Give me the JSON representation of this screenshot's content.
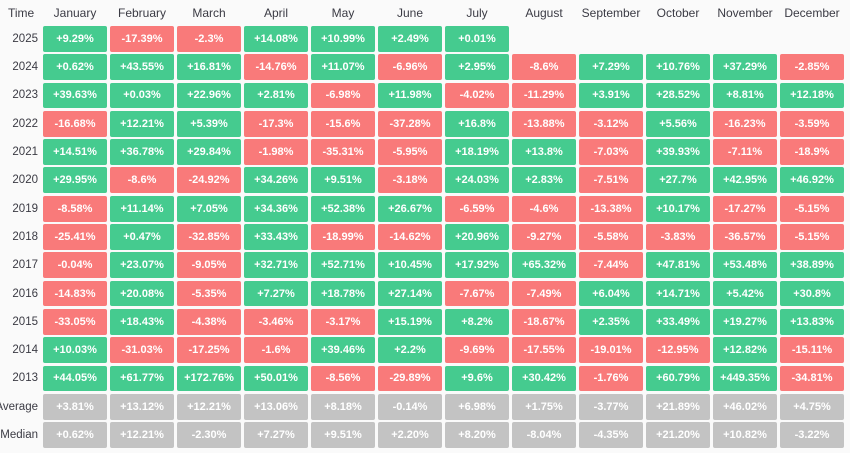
{
  "header": {
    "time_label": "Time"
  },
  "colors": {
    "positive": "#45cb8f",
    "negative": "#f97a7a",
    "summary": "#c3c3c3",
    "cell_text": "#ffffff",
    "header_text": "#3b3b44",
    "background": "#fafafa"
  },
  "chart_data": {
    "type": "heatmap",
    "columns": [
      "January",
      "February",
      "March",
      "April",
      "May",
      "June",
      "July",
      "August",
      "September",
      "October",
      "November",
      "December"
    ],
    "rows": [
      {
        "label": "2025",
        "kind": "year",
        "values": [
          "+9.29%",
          "-17.39%",
          "-2.3%",
          "+14.08%",
          "+10.99%",
          "+2.49%",
          "+0.01%",
          null,
          null,
          null,
          null,
          null
        ]
      },
      {
        "label": "2024",
        "kind": "year",
        "values": [
          "+0.62%",
          "+43.55%",
          "+16.81%",
          "-14.76%",
          "+11.07%",
          "-6.96%",
          "+2.95%",
          "-8.6%",
          "+7.29%",
          "+10.76%",
          "+37.29%",
          "-2.85%"
        ]
      },
      {
        "label": "2023",
        "kind": "year",
        "values": [
          "+39.63%",
          "+0.03%",
          "+22.96%",
          "+2.81%",
          "-6.98%",
          "+11.98%",
          "-4.02%",
          "-11.29%",
          "+3.91%",
          "+28.52%",
          "+8.81%",
          "+12.18%"
        ]
      },
      {
        "label": "2022",
        "kind": "year",
        "values": [
          "-16.68%",
          "+12.21%",
          "+5.39%",
          "-17.3%",
          "-15.6%",
          "-37.28%",
          "+16.8%",
          "-13.88%",
          "-3.12%",
          "+5.56%",
          "-16.23%",
          "-3.59%"
        ]
      },
      {
        "label": "2021",
        "kind": "year",
        "values": [
          "+14.51%",
          "+36.78%",
          "+29.84%",
          "-1.98%",
          "-35.31%",
          "-5.95%",
          "+18.19%",
          "+13.8%",
          "-7.03%",
          "+39.93%",
          "-7.11%",
          "-18.9%"
        ]
      },
      {
        "label": "2020",
        "kind": "year",
        "values": [
          "+29.95%",
          "-8.6%",
          "-24.92%",
          "+34.26%",
          "+9.51%",
          "-3.18%",
          "+24.03%",
          "+2.83%",
          "-7.51%",
          "+27.7%",
          "+42.95%",
          "+46.92%"
        ]
      },
      {
        "label": "2019",
        "kind": "year",
        "values": [
          "-8.58%",
          "+11.14%",
          "+7.05%",
          "+34.36%",
          "+52.38%",
          "+26.67%",
          "-6.59%",
          "-4.6%",
          "-13.38%",
          "+10.17%",
          "-17.27%",
          "-5.15%"
        ]
      },
      {
        "label": "2018",
        "kind": "year",
        "values": [
          "-25.41%",
          "+0.47%",
          "-32.85%",
          "+33.43%",
          "-18.99%",
          "-14.62%",
          "+20.96%",
          "-9.27%",
          "-5.58%",
          "-3.83%",
          "-36.57%",
          "-5.15%"
        ]
      },
      {
        "label": "2017",
        "kind": "year",
        "values": [
          "-0.04%",
          "+23.07%",
          "-9.05%",
          "+32.71%",
          "+52.71%",
          "+10.45%",
          "+17.92%",
          "+65.32%",
          "-7.44%",
          "+47.81%",
          "+53.48%",
          "+38.89%"
        ]
      },
      {
        "label": "2016",
        "kind": "year",
        "values": [
          "-14.83%",
          "+20.08%",
          "-5.35%",
          "+7.27%",
          "+18.78%",
          "+27.14%",
          "-7.67%",
          "-7.49%",
          "+6.04%",
          "+14.71%",
          "+5.42%",
          "+30.8%"
        ]
      },
      {
        "label": "2015",
        "kind": "year",
        "values": [
          "-33.05%",
          "+18.43%",
          "-4.38%",
          "-3.46%",
          "-3.17%",
          "+15.19%",
          "+8.2%",
          "-18.67%",
          "+2.35%",
          "+33.49%",
          "+19.27%",
          "+13.83%"
        ]
      },
      {
        "label": "2014",
        "kind": "year",
        "values": [
          "+10.03%",
          "-31.03%",
          "-17.25%",
          "-1.6%",
          "+39.46%",
          "+2.2%",
          "-9.69%",
          "-17.55%",
          "-19.01%",
          "-12.95%",
          "+12.82%",
          "-15.11%"
        ]
      },
      {
        "label": "2013",
        "kind": "year",
        "values": [
          "+44.05%",
          "+61.77%",
          "+172.76%",
          "+50.01%",
          "-8.56%",
          "-29.89%",
          "+9.6%",
          "+30.42%",
          "-1.76%",
          "+60.79%",
          "+449.35%",
          "-34.81%"
        ]
      },
      {
        "label": "Average",
        "kind": "summary",
        "values": [
          "+3.81%",
          "+13.12%",
          "+12.21%",
          "+13.06%",
          "+8.18%",
          "-0.14%",
          "+6.98%",
          "+1.75%",
          "-3.77%",
          "+21.89%",
          "+46.02%",
          "+4.75%"
        ]
      },
      {
        "label": "Median",
        "kind": "summary",
        "values": [
          "+0.62%",
          "+12.21%",
          "-2.30%",
          "+7.27%",
          "+9.51%",
          "+2.20%",
          "+8.20%",
          "-8.04%",
          "-4.35%",
          "+21.20%",
          "+10.82%",
          "-3.22%"
        ]
      }
    ]
  }
}
